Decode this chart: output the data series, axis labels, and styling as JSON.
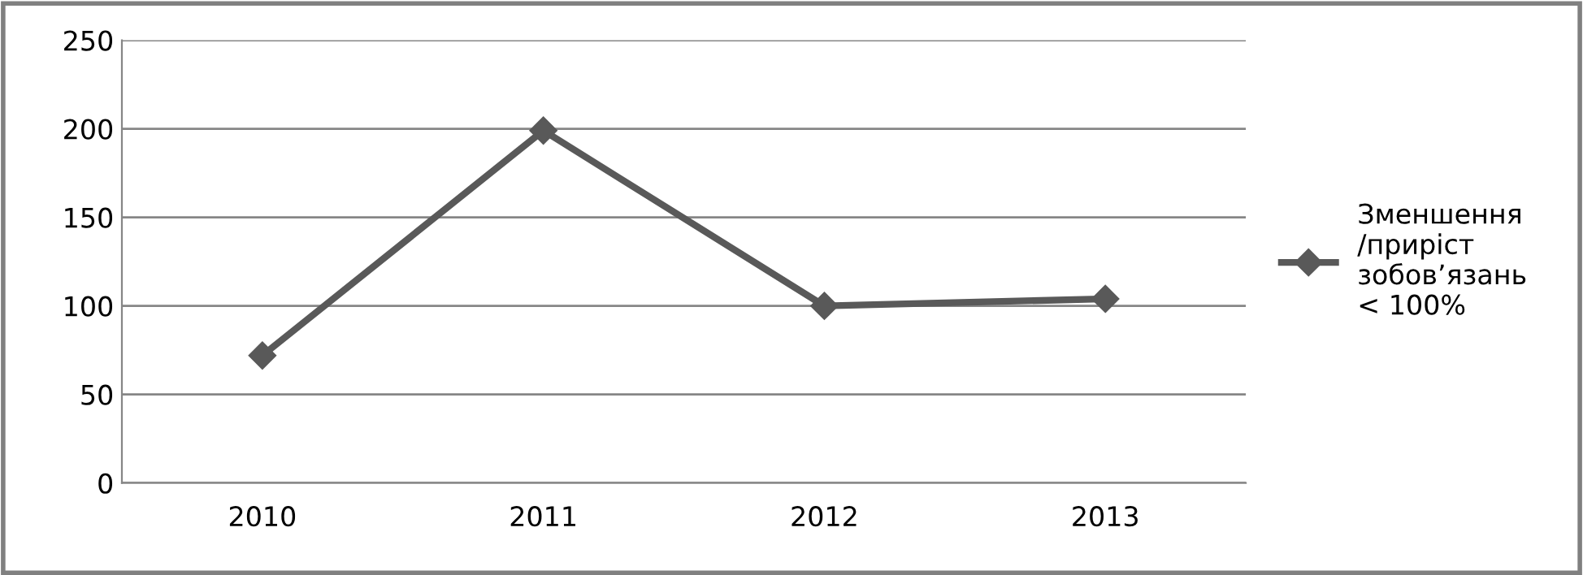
{
  "chart_data": {
    "type": "line",
    "categories": [
      "2010",
      "2011",
      "2012",
      "2013"
    ],
    "series": [
      {
        "name": "Зменшення\n/приріст\nзобов’язань\n< 100%",
        "color": "#595959",
        "values": [
          72,
          199,
          100,
          104
        ]
      }
    ],
    "ylim": [
      0,
      250
    ],
    "yticks": [
      0,
      50,
      100,
      150,
      200,
      250
    ],
    "grid": "y",
    "legend": "right",
    "marker": "diamond",
    "line_style": "solid"
  }
}
